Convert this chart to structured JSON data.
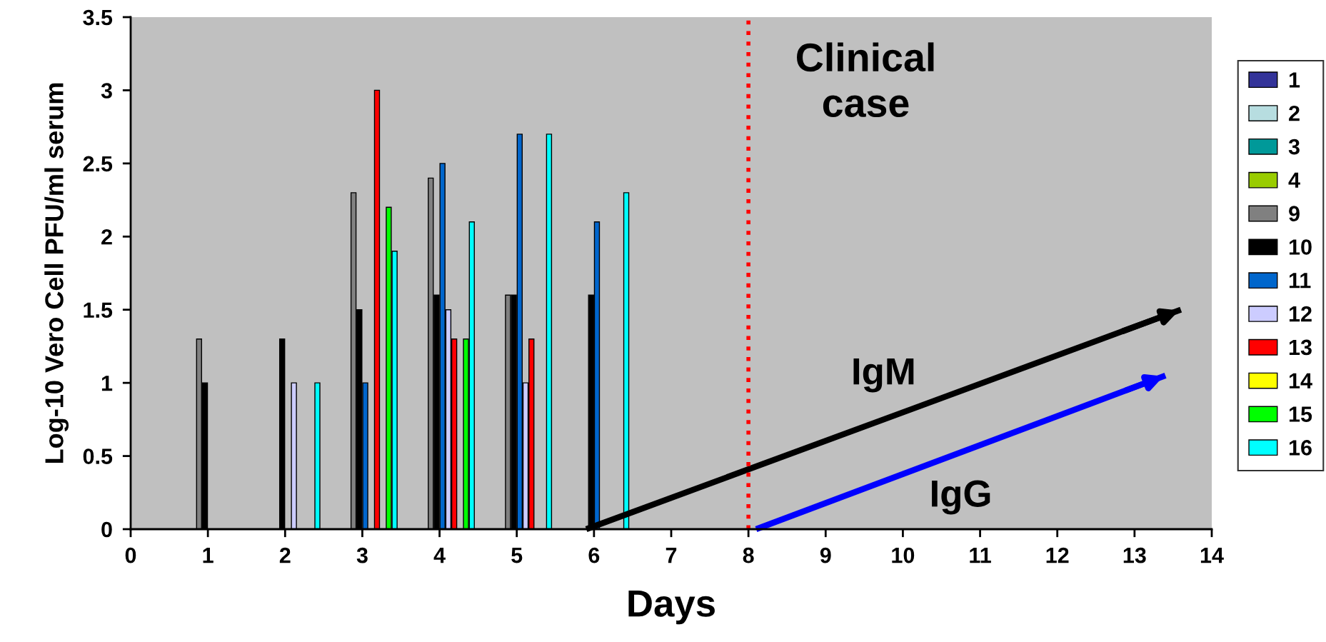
{
  "chart_data": {
    "type": "bar",
    "xlabel": "Days",
    "ylabel": "Log-10 Vero Cell PFU/ml serum",
    "x": [
      1,
      2,
      3,
      4,
      5,
      6
    ],
    "series": [
      {
        "name": "1",
        "color": "#333399",
        "values": [
          null,
          null,
          null,
          null,
          null,
          null
        ]
      },
      {
        "name": "2",
        "color": "#b7dde0",
        "values": [
          null,
          null,
          null,
          null,
          null,
          null
        ]
      },
      {
        "name": "3",
        "color": "#009999",
        "values": [
          null,
          null,
          null,
          null,
          null,
          null
        ]
      },
      {
        "name": "4",
        "color": "#99cc00",
        "values": [
          null,
          null,
          null,
          null,
          null,
          null
        ]
      },
      {
        "name": "9",
        "color": "#808080",
        "values": [
          1.3,
          null,
          2.3,
          2.4,
          1.6,
          null
        ]
      },
      {
        "name": "10",
        "color": "#000000",
        "values": [
          1.0,
          1.3,
          1.5,
          1.6,
          1.6,
          1.6
        ]
      },
      {
        "name": "11",
        "color": "#0066cc",
        "values": [
          null,
          null,
          1.0,
          2.5,
          2.7,
          2.1
        ]
      },
      {
        "name": "12",
        "color": "#ccccff",
        "values": [
          null,
          1.0,
          null,
          1.5,
          1.0,
          null
        ]
      },
      {
        "name": "13",
        "color": "#ff0000",
        "values": [
          null,
          null,
          3.0,
          1.3,
          1.3,
          null
        ]
      },
      {
        "name": "14",
        "color": "#ffff00",
        "values": [
          null,
          null,
          null,
          null,
          null,
          null
        ]
      },
      {
        "name": "15",
        "color": "#00ff00",
        "values": [
          null,
          null,
          2.2,
          1.3,
          null,
          null
        ]
      },
      {
        "name": "16",
        "color": "#00ffff",
        "values": [
          null,
          1.0,
          1.9,
          2.1,
          2.7,
          2.3
        ]
      },
      {
        "name": "IgM",
        "type": "line",
        "color": "#000000",
        "x": [
          5.9,
          13.6
        ],
        "values": [
          0,
          1.5
        ]
      },
      {
        "name": "IgG",
        "type": "line",
        "color": "#0000ff",
        "x": [
          8.1,
          13.4
        ],
        "values": [
          0,
          1.05
        ]
      }
    ],
    "xlim": [
      0,
      14
    ],
    "xticks": [
      0,
      1,
      2,
      3,
      4,
      5,
      6,
      7,
      8,
      9,
      10,
      11,
      12,
      13,
      14
    ],
    "ylim": [
      0,
      3.5
    ],
    "yticks": [
      0,
      0.5,
      1,
      1.5,
      2,
      2.5,
      3,
      3.5
    ],
    "ref_lines": [
      {
        "axis": "x",
        "value": 8,
        "color": "#ff0000",
        "line_style": "dotted"
      }
    ],
    "annotations": [
      "Clinical case"
    ],
    "grid": false,
    "legend": "right"
  }
}
